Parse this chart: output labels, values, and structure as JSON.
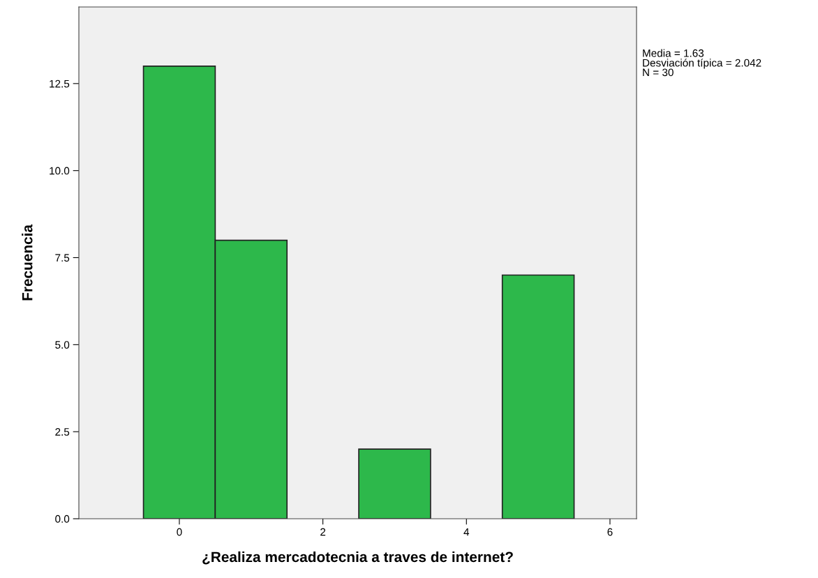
{
  "chart_data": {
    "type": "histogram",
    "xlabel": "¿Realiza mercadotecnia a traves de internet?",
    "ylabel": "Frecuencia",
    "bins": [
      -0.5,
      0.5,
      1.5,
      2.5,
      3.5,
      4.5,
      5.5
    ],
    "values": [
      13,
      8,
      0,
      2,
      0,
      7
    ],
    "color": "#2db84b",
    "xlim": [
      -1.4,
      6.37
    ],
    "xticks": [
      0,
      2,
      4,
      6
    ],
    "ylim": [
      0,
      14.7
    ],
    "yticks": [
      {
        "value": 0,
        "label": "0.0"
      },
      {
        "value": 2.5,
        "label": "2.5"
      },
      {
        "value": 5,
        "label": "5.0"
      },
      {
        "value": 7.5,
        "label": "7.5"
      },
      {
        "value": 10,
        "label": "10.0"
      },
      {
        "value": 12.5,
        "label": "12.5"
      }
    ],
    "grid": false,
    "annotations": [
      "Media = 1.63\nDesviación típica = 2.042\nN = 30"
    ]
  }
}
